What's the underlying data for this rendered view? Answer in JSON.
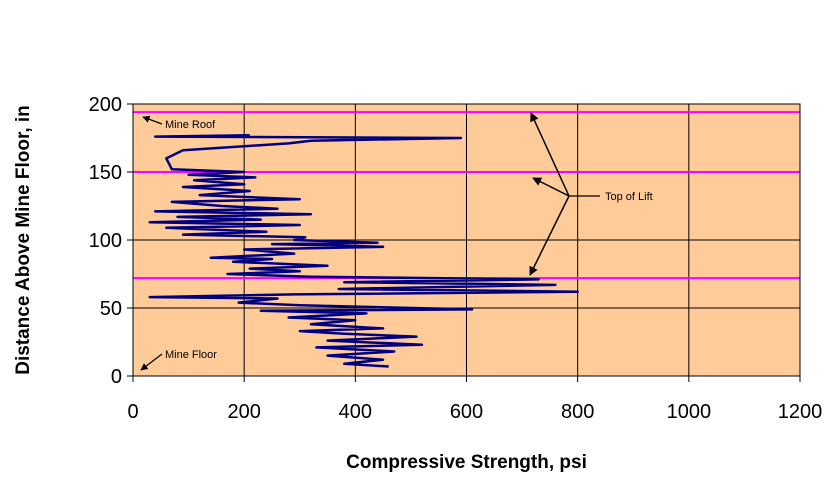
{
  "chart_data": {
    "type": "line",
    "title": "",
    "xlabel": "Compressive Strength, psi",
    "ylabel": "Distance Above Mine Floor, in",
    "xlim": [
      0,
      1200
    ],
    "ylim": [
      0,
      200
    ],
    "xticks": [
      0,
      200,
      400,
      600,
      800,
      1000,
      1200
    ],
    "yticks": [
      0,
      50,
      100,
      150,
      200
    ],
    "grid": true,
    "plot_background": "#FFCC99",
    "colors": {
      "series": "#000080",
      "horizontal_lines": "#FF00FF",
      "grid": "#000000"
    },
    "horizontal_lines": [
      194,
      150,
      72
    ],
    "series": [
      {
        "points": [
          [
            460,
            7
          ],
          [
            380,
            9
          ],
          [
            450,
            12
          ],
          [
            350,
            15
          ],
          [
            470,
            18
          ],
          [
            330,
            21
          ],
          [
            520,
            23
          ],
          [
            350,
            26
          ],
          [
            510,
            29
          ],
          [
            380,
            31
          ],
          [
            300,
            33
          ],
          [
            450,
            35
          ],
          [
            320,
            38
          ],
          [
            400,
            41
          ],
          [
            280,
            43
          ],
          [
            420,
            46
          ],
          [
            230,
            48
          ],
          [
            610,
            49
          ],
          [
            300,
            52
          ],
          [
            190,
            54
          ],
          [
            260,
            57
          ],
          [
            30,
            58
          ],
          [
            290,
            60
          ],
          [
            800,
            62
          ],
          [
            370,
            64
          ],
          [
            760,
            67
          ],
          [
            380,
            69
          ],
          [
            730,
            71
          ],
          [
            320,
            73
          ],
          [
            170,
            75
          ],
          [
            300,
            77
          ],
          [
            210,
            79
          ],
          [
            350,
            81
          ],
          [
            180,
            84
          ],
          [
            250,
            86
          ],
          [
            140,
            87
          ],
          [
            290,
            90
          ],
          [
            200,
            93
          ],
          [
            450,
            95
          ],
          [
            250,
            97
          ],
          [
            440,
            98
          ],
          [
            290,
            100
          ],
          [
            310,
            102
          ],
          [
            90,
            104
          ],
          [
            240,
            106
          ],
          [
            60,
            109
          ],
          [
            300,
            111
          ],
          [
            30,
            113
          ],
          [
            230,
            115
          ],
          [
            80,
            117
          ],
          [
            320,
            119
          ],
          [
            40,
            121
          ],
          [
            260,
            123
          ],
          [
            160,
            125
          ],
          [
            70,
            128
          ],
          [
            300,
            130
          ],
          [
            120,
            133
          ],
          [
            210,
            136
          ],
          [
            90,
            139
          ],
          [
            200,
            141
          ],
          [
            110,
            144
          ],
          [
            220,
            146
          ],
          [
            100,
            148
          ],
          [
            200,
            150
          ],
          [
            70,
            152
          ],
          [
            60,
            160
          ],
          [
            90,
            166
          ],
          [
            200,
            169
          ],
          [
            280,
            171
          ],
          [
            320,
            173
          ],
          [
            590,
            175
          ],
          [
            40,
            176
          ],
          [
            210,
            177
          ]
        ]
      }
    ],
    "annotations": {
      "mine_roof": "Mine Roof",
      "mine_floor": "Mine Floor",
      "top_of_lift": "Top of Lift"
    }
  }
}
